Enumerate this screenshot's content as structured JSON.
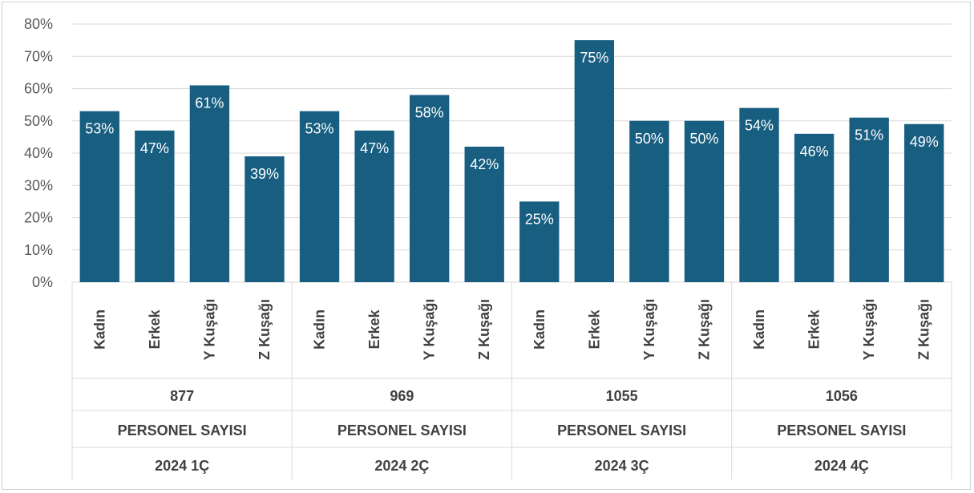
{
  "chart_data": {
    "type": "bar",
    "y_ticks": [
      "0%",
      "10%",
      "20%",
      "30%",
      "40%",
      "50%",
      "60%",
      "70%",
      "80%"
    ],
    "ylim": [
      0,
      80
    ],
    "grid": true,
    "bar_color": "#175E81",
    "groups": [
      {
        "quarter": "2024 1Ç",
        "personnel_label": "PERSONEL SAYISI",
        "personnel_count": "877",
        "categories": [
          "Kadın",
          "Erkek",
          "Y Kuşağı",
          "Z Kuşağı"
        ],
        "values": [
          53,
          47,
          61,
          39
        ],
        "labels": [
          "53%",
          "47%",
          "61%",
          "39%"
        ]
      },
      {
        "quarter": "2024 2Ç",
        "personnel_label": "PERSONEL SAYISI",
        "personnel_count": "969",
        "categories": [
          "Kadın",
          "Erkek",
          "Y Kuşağı",
          "Z Kuşağı"
        ],
        "values": [
          53,
          47,
          58,
          42
        ],
        "labels": [
          "53%",
          "47%",
          "58%",
          "42%"
        ]
      },
      {
        "quarter": "2024 3Ç",
        "personnel_label": "PERSONEL SAYISI",
        "personnel_count": "1055",
        "categories": [
          "Kadın",
          "Erkek",
          "Y Kuşağı",
          "Z Kuşağı"
        ],
        "values": [
          25,
          75,
          50,
          50
        ],
        "labels": [
          "25%",
          "75%",
          "50%",
          "50%"
        ]
      },
      {
        "quarter": "2024 4Ç",
        "personnel_label": "PERSONEL SAYISI",
        "personnel_count": "1056",
        "categories": [
          "Kadın",
          "Erkek",
          "Y Kuşağı",
          "Z Kuşağı"
        ],
        "values": [
          54,
          46,
          51,
          49
        ],
        "labels": [
          "54%",
          "46%",
          "51%",
          "49%"
        ]
      }
    ]
  }
}
